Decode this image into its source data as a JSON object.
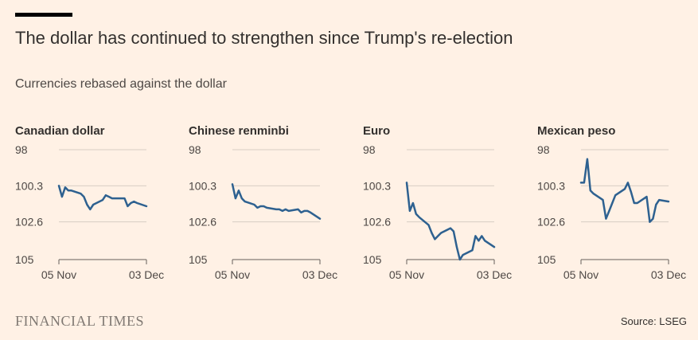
{
  "header": {
    "title": "The dollar has continued to strengthen since Trump's re-election",
    "subtitle": "Currencies rebased against the dollar"
  },
  "footer": {
    "brand": "FINANCIAL TIMES",
    "source": "Source: LSEG"
  },
  "colors": {
    "background": "#fff1e5",
    "line": "#2e6190",
    "gridline": "#d7cdc4",
    "axis": "#66605c"
  },
  "chart_data": [
    {
      "type": "line",
      "title": "Canadian dollar",
      "y_ticks": [
        98,
        100.3,
        102.6,
        105
      ],
      "y_tick_labels": [
        "98",
        "100.3",
        "102.6",
        "105"
      ],
      "ylim": [
        98,
        105
      ],
      "y_inverted": true,
      "x_tick_labels": [
        "05 Nov",
        "03 Dec"
      ],
      "x": [
        0,
        1,
        2,
        3,
        4,
        7,
        8,
        9,
        10,
        11,
        14,
        15,
        16,
        17,
        18,
        21,
        22,
        23,
        24,
        25,
        28
      ],
      "values": [
        100.3,
        101.0,
        100.4,
        100.6,
        100.6,
        100.8,
        101.0,
        101.5,
        101.8,
        101.5,
        101.2,
        100.9,
        101.0,
        101.1,
        101.1,
        101.1,
        101.6,
        101.4,
        101.3,
        101.4,
        101.6
      ]
    },
    {
      "type": "line",
      "title": "Chinese renminbi",
      "y_ticks": [
        98,
        100.3,
        102.6,
        105
      ],
      "y_tick_labels": [
        "98",
        "100.3",
        "102.6",
        "105"
      ],
      "ylim": [
        98,
        105
      ],
      "y_inverted": true,
      "x_tick_labels": [
        "05 Nov",
        "03 Dec"
      ],
      "x": [
        0,
        1,
        2,
        3,
        4,
        7,
        8,
        9,
        10,
        11,
        14,
        15,
        16,
        17,
        18,
        21,
        22,
        23,
        24,
        25,
        28
      ],
      "values": [
        100.2,
        101.1,
        100.6,
        101.1,
        101.3,
        101.5,
        101.7,
        101.6,
        101.6,
        101.7,
        101.8,
        101.8,
        101.9,
        101.8,
        101.9,
        101.8,
        102.0,
        101.9,
        101.9,
        102.0,
        102.4
      ]
    },
    {
      "type": "line",
      "title": "Euro",
      "y_ticks": [
        98,
        100.3,
        102.6,
        105
      ],
      "y_tick_labels": [
        "98",
        "100.3",
        "102.6",
        "105"
      ],
      "ylim": [
        98,
        105
      ],
      "y_inverted": true,
      "x_tick_labels": [
        "05 Nov",
        "03 Dec"
      ],
      "x": [
        0,
        1,
        2,
        3,
        4,
        7,
        8,
        9,
        10,
        11,
        14,
        15,
        16,
        17,
        18,
        21,
        22,
        23,
        24,
        25,
        28
      ],
      "values": [
        100.1,
        101.9,
        101.4,
        102.1,
        102.3,
        102.8,
        103.3,
        103.7,
        103.5,
        103.3,
        103.0,
        103.2,
        104.2,
        105.0,
        104.7,
        104.4,
        103.5,
        103.8,
        103.5,
        103.8,
        104.2
      ]
    },
    {
      "type": "line",
      "title": "Mexican peso",
      "y_ticks": [
        98,
        100.3,
        102.6,
        105
      ],
      "y_tick_labels": [
        "98",
        "100.3",
        "102.6",
        "105"
      ],
      "ylim": [
        98,
        105
      ],
      "y_inverted": true,
      "x_tick_labels": [
        "05 Nov",
        "03 Dec"
      ],
      "x": [
        0,
        1,
        2,
        3,
        4,
        7,
        8,
        9,
        10,
        11,
        14,
        15,
        16,
        17,
        18,
        21,
        22,
        23,
        24,
        25,
        28
      ],
      "values": [
        100.1,
        100.1,
        98.6,
        100.6,
        100.8,
        101.2,
        102.4,
        101.9,
        101.4,
        100.9,
        100.5,
        100.1,
        100.7,
        101.4,
        101.4,
        101.0,
        102.6,
        102.4,
        101.5,
        101.2,
        101.3
      ]
    }
  ]
}
